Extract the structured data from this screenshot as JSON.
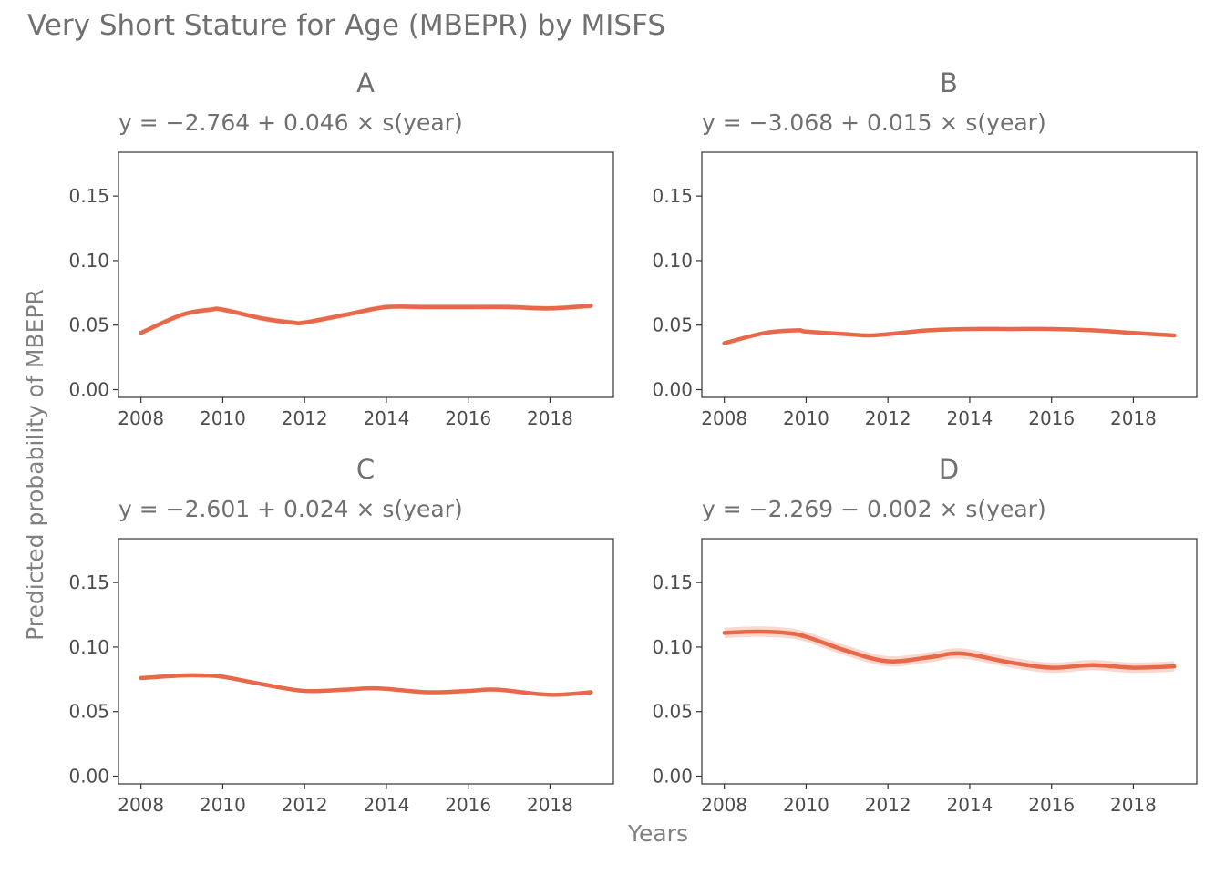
{
  "title": "Very Short Stature for Age (MBEPR) by MISFS",
  "xlabel": "Years",
  "ylabel": "Predicted probability of MBEPR",
  "colors": {
    "line": "#E8694A",
    "ribbon": "#F4B8A8",
    "text": "#707070",
    "frame": "#333333"
  },
  "chart_data": [
    {
      "type": "line",
      "panel": "A",
      "subtitle": "y = −2.764 + 0.046 × s(year)",
      "x": [
        2008,
        2009,
        2009.7,
        2010,
        2011,
        2011.7,
        2012,
        2013,
        2014,
        2015,
        2016,
        2017,
        2018,
        2019
      ],
      "y": [
        0.044,
        0.058,
        0.062,
        0.062,
        0.055,
        0.052,
        0.052,
        0.058,
        0.064,
        0.064,
        0.064,
        0.064,
        0.063,
        0.065
      ],
      "ci_halfwidth": 0.002,
      "xlim": [
        2007.45,
        2019.55
      ],
      "ylim": [
        -0.006,
        0.184
      ],
      "xticks": [
        "2008",
        "2010",
        "2012",
        "2014",
        "2016",
        "2018"
      ],
      "yticks": [
        "0.00",
        "0.05",
        "0.10",
        "0.15"
      ]
    },
    {
      "type": "line",
      "panel": "B",
      "subtitle": "y = −3.068 + 0.015 × s(year)",
      "x": [
        2008,
        2009,
        2009.8,
        2010,
        2011,
        2011.5,
        2012,
        2013,
        2014,
        2015,
        2016,
        2017,
        2018,
        2019
      ],
      "y": [
        0.036,
        0.044,
        0.046,
        0.045,
        0.043,
        0.042,
        0.043,
        0.046,
        0.047,
        0.047,
        0.047,
        0.046,
        0.044,
        0.042
      ],
      "ci_halfwidth": 0.0015,
      "xlim": [
        2007.45,
        2019.55
      ],
      "ylim": [
        -0.006,
        0.184
      ],
      "xticks": [
        "2008",
        "2010",
        "2012",
        "2014",
        "2016",
        "2018"
      ],
      "yticks": [
        "0.00",
        "0.05",
        "0.10",
        "0.15"
      ]
    },
    {
      "type": "line",
      "panel": "C",
      "subtitle": "y = −2.601 + 0.024 × s(year)",
      "x": [
        2008,
        2009,
        2009.5,
        2010,
        2011,
        2012,
        2013,
        2013.8,
        2015,
        2016,
        2016.7,
        2018,
        2019
      ],
      "y": [
        0.076,
        0.078,
        0.078,
        0.077,
        0.071,
        0.066,
        0.067,
        0.068,
        0.065,
        0.066,
        0.067,
        0.063,
        0.065
      ],
      "ci_halfwidth": 0.0015,
      "xlim": [
        2007.45,
        2019.55
      ],
      "ylim": [
        -0.006,
        0.184
      ],
      "xticks": [
        "2008",
        "2010",
        "2012",
        "2014",
        "2016",
        "2018"
      ],
      "yticks": [
        "0.00",
        "0.05",
        "0.10",
        "0.15"
      ]
    },
    {
      "type": "line",
      "panel": "D",
      "subtitle": "y = −2.269 − 0.002 × s(year)",
      "x": [
        2008,
        2008.8,
        2009.5,
        2010,
        2011,
        2012,
        2013,
        2013.8,
        2015,
        2016,
        2017,
        2018,
        2019
      ],
      "y": [
        0.111,
        0.112,
        0.111,
        0.108,
        0.097,
        0.089,
        0.092,
        0.095,
        0.088,
        0.084,
        0.086,
        0.084,
        0.085
      ],
      "ci_halfwidth": 0.004,
      "xlim": [
        2007.45,
        2019.55
      ],
      "ylim": [
        -0.006,
        0.184
      ],
      "xticks": [
        "2008",
        "2010",
        "2012",
        "2014",
        "2016",
        "2018"
      ],
      "yticks": [
        "0.00",
        "0.05",
        "0.10",
        "0.15"
      ]
    }
  ]
}
